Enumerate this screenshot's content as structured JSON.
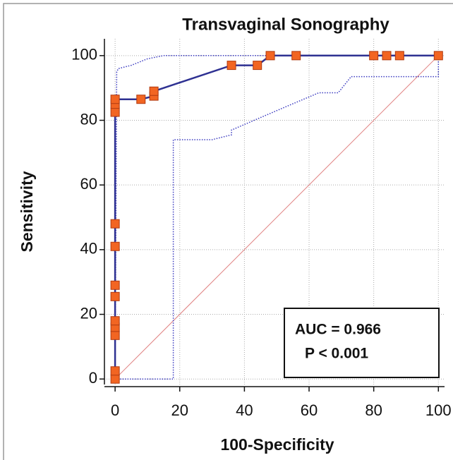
{
  "chart_data": {
    "type": "line",
    "title": "Transvaginal Sonography",
    "xlabel": "100-Specificity",
    "ylabel": "Sensitivity",
    "annotations": [
      "AUC = 0.966",
      "P < 0.001"
    ],
    "xlim": [
      -3.3,
      101.9
    ],
    "ylim": [
      -1.7,
      105.2
    ],
    "xticks": [
      0,
      20,
      40,
      60,
      80,
      100
    ],
    "yticks": [
      0,
      20,
      40,
      60,
      80,
      100
    ],
    "grid": true,
    "series": [
      {
        "color": "#e08080",
        "style": "solid",
        "width": 1,
        "markers": false,
        "x": [
          0,
          100
        ],
        "values": [
          0,
          100
        ]
      },
      {
        "color": "#3a3ac0",
        "style": "dotted",
        "width": 1.5,
        "markers": false,
        "x": [
          0,
          0.5,
          1,
          5,
          10,
          15,
          100
        ],
        "values": [
          0,
          95,
          96,
          97,
          99,
          100,
          100
        ]
      },
      {
        "color": "#3a3ac0",
        "style": "dotted",
        "width": 1.5,
        "markers": false,
        "x": [
          0,
          18,
          18,
          30,
          36,
          36,
          50,
          63,
          69,
          73,
          100,
          100
        ],
        "values": [
          0,
          0,
          74,
          74,
          75.5,
          77,
          83,
          88.5,
          88.5,
          93.5,
          93.5,
          100
        ]
      },
      {
        "color": "#2e3192",
        "style": "solid",
        "width": 2.5,
        "markers": true,
        "marker_color": "#f26522",
        "x": [
          0,
          0,
          0,
          0,
          0,
          0,
          0,
          0,
          0,
          0,
          0,
          0,
          8,
          12,
          12,
          36,
          44,
          48,
          56,
          80,
          84,
          88,
          100
        ],
        "values": [
          0,
          2.5,
          13.5,
          16,
          18,
          25.5,
          29,
          41,
          48,
          82.5,
          85,
          86.5,
          86.5,
          87.5,
          89,
          97,
          97,
          100,
          100,
          100,
          100,
          100,
          100
        ]
      }
    ]
  }
}
